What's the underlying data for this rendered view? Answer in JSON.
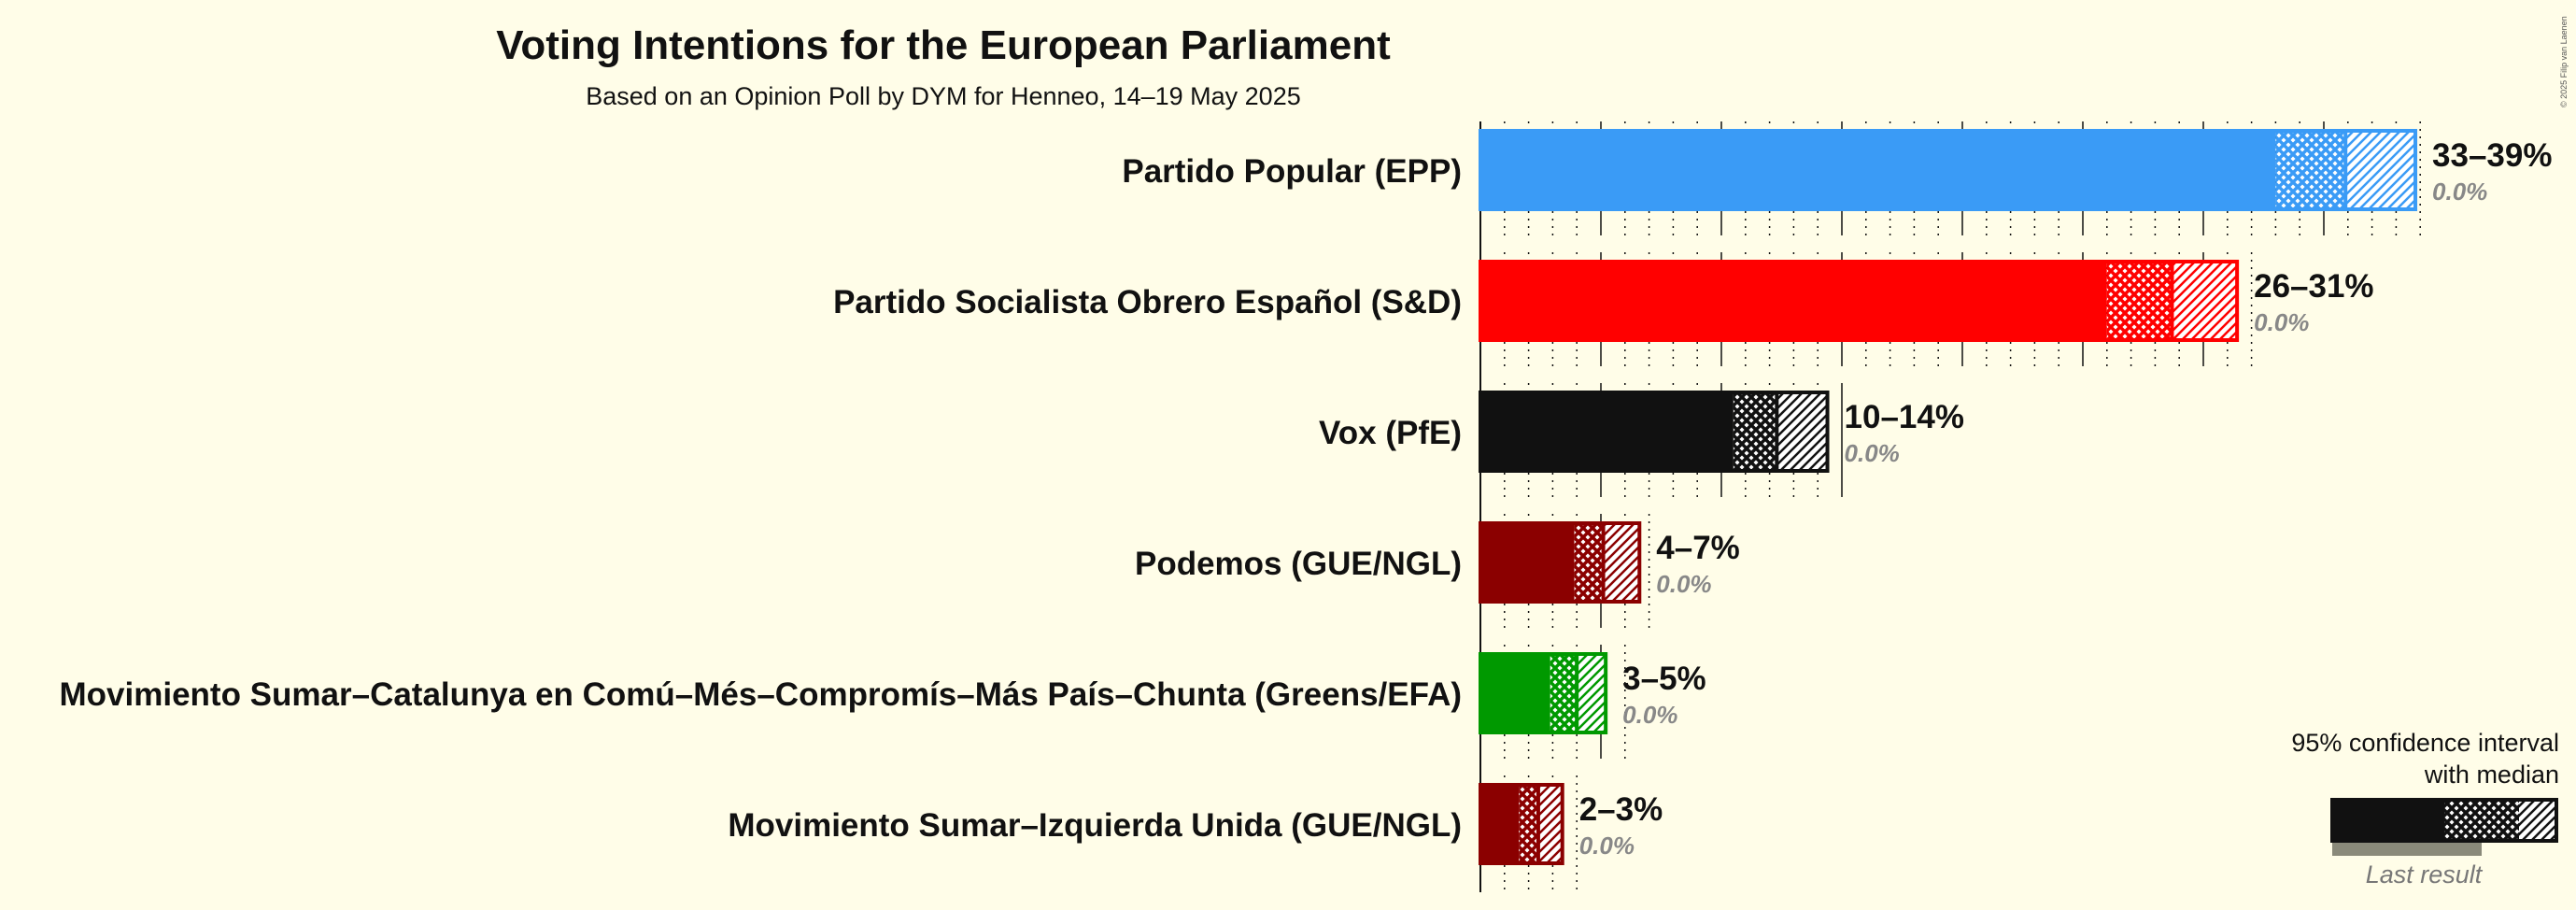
{
  "title": "Voting Intentions for the European Parliament",
  "subtitle": "Based on an Opinion Poll by DYM for Henneo, 14–19 May 2025",
  "copyright": "© 2025 Filip van Laenen",
  "legend": {
    "line1": "95% confidence interval",
    "line2": "with median",
    "last_result": "Last result"
  },
  "chart_data": {
    "type": "bar",
    "title": "Voting Intentions for the European Parliament",
    "subtitle": "Based on an Opinion Poll by DYM for Henneo, 14–19 May 2025",
    "xlim": [
      0,
      40
    ],
    "gridlines": {
      "major_every": 5,
      "minor_every": 1
    },
    "categories": [
      "Partido Popular (EPP)",
      "Partido Socialista Obrero Español (S&D)",
      "Vox (PfE)",
      "Podemos (GUE/NGL)",
      "Movimiento Sumar–Catalunya en Comú–Més–Compromís–Más País–Chunta (Greens/EFA)",
      "Movimiento Sumar–Izquierda Unida (GUE/NGL)"
    ],
    "series": [
      {
        "party": "Partido Popular (EPP)",
        "color": "#3a9bf6",
        "ci_low": 33.0,
        "median": 35.9,
        "ci_high": 38.8,
        "range_label": "33–39%",
        "last_result": "0.0%"
      },
      {
        "party": "Partido Socialista Obrero Español (S&D)",
        "color": "#ff0000",
        "ci_low": 26.0,
        "median": 28.7,
        "ci_high": 31.4,
        "range_label": "26–31%",
        "last_result": "0.0%"
      },
      {
        "party": "Vox (PfE)",
        "color": "#111111",
        "ci_low": 10.5,
        "median": 12.3,
        "ci_high": 14.4,
        "range_label": "10–14%",
        "last_result": "0.0%"
      },
      {
        "party": "Podemos (GUE/NGL)",
        "color": "#8b0000",
        "ci_low": 3.9,
        "median": 5.1,
        "ci_high": 6.6,
        "range_label": "4–7%",
        "last_result": "0.0%"
      },
      {
        "party": "Movimiento Sumar–Catalunya en Comú–Més–Compromís–Más País–Chunta (Greens/EFA)",
        "color": "#009900",
        "ci_low": 2.9,
        "median": 4.0,
        "ci_high": 5.2,
        "range_label": "3–5%",
        "last_result": "0.0%"
      },
      {
        "party": "Movimiento Sumar–Izquierda Unida (GUE/NGL)",
        "color": "#8b0000",
        "ci_low": 1.6,
        "median": 2.4,
        "ci_high": 3.4,
        "range_label": "2–3%",
        "last_result": "0.0%"
      }
    ]
  }
}
